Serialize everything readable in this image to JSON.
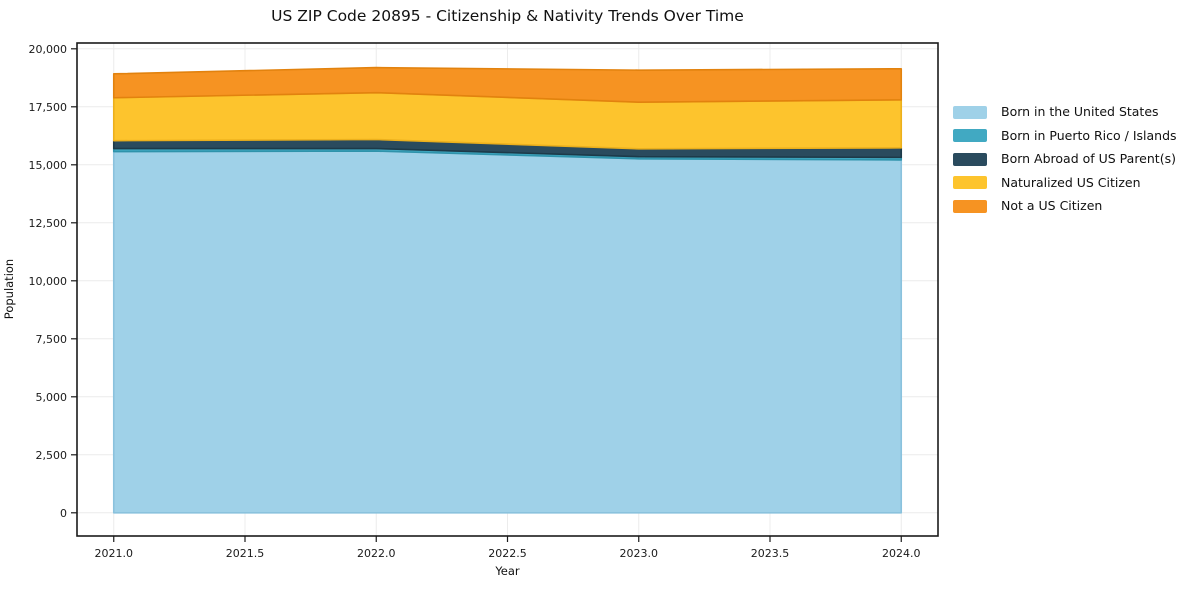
{
  "title": "US ZIP Code 20895 - Citizenship & Nativity Trends Over Time",
  "axes": {
    "xlabel": "Year",
    "ylabel": "Population"
  },
  "chart_data": {
    "type": "area",
    "stacked": true,
    "title": "US ZIP Code 20895 - Citizenship & Nativity Trends Over Time",
    "xlabel": "Year",
    "ylabel": "Population",
    "x": [
      2021,
      2022,
      2023,
      2024
    ],
    "series": [
      {
        "name": "Born in the United States",
        "color": "#9fd1e8",
        "edge": "#8ac2dd",
        "values": [
          15570,
          15590,
          15260,
          15210
        ]
      },
      {
        "name": "Born in Puerto Rico / Islands",
        "color": "#41a9c2",
        "edge": "#2f93ab",
        "values": [
          130,
          110,
          90,
          110
        ]
      },
      {
        "name": "Born Abroad of US Parent(s)",
        "color": "#2a4b5e",
        "edge": "#1d3a49",
        "values": [
          340,
          390,
          340,
          410
        ]
      },
      {
        "name": "Naturalized US Citizen",
        "color": "#fdc42d",
        "edge": "#ecb01c",
        "values": [
          1850,
          2020,
          2010,
          2070
        ]
      },
      {
        "name": "Not a US Citizen",
        "color": "#f69322",
        "edge": "#e2820e",
        "values": [
          1030,
          1080,
          1380,
          1340
        ]
      }
    ],
    "totals": [
      18920,
      19190,
      19080,
      19140
    ],
    "xticks": [
      2021.0,
      2021.5,
      2022.0,
      2022.5,
      2023.0,
      2023.5,
      2024.0
    ],
    "xtick_labels": [
      "2021.0",
      "2021.5",
      "2022.0",
      "2022.5",
      "2023.0",
      "2023.5",
      "2024.0"
    ],
    "yticks": [
      0,
      2500,
      5000,
      7500,
      10000,
      12500,
      15000,
      17500,
      20000
    ],
    "ytick_labels": [
      "0",
      "2,500",
      "5,000",
      "7,500",
      "10,000",
      "12,500",
      "15,000",
      "17,500",
      "20,000"
    ],
    "xlim": [
      2020.86,
      2024.14
    ],
    "ylim": [
      -1000,
      20250
    ],
    "grid": true,
    "grid_color": "#ececec",
    "spine_color": "#1a1a1a",
    "tick_color": "#1a1a1a",
    "legend_position": "right-outside"
  }
}
